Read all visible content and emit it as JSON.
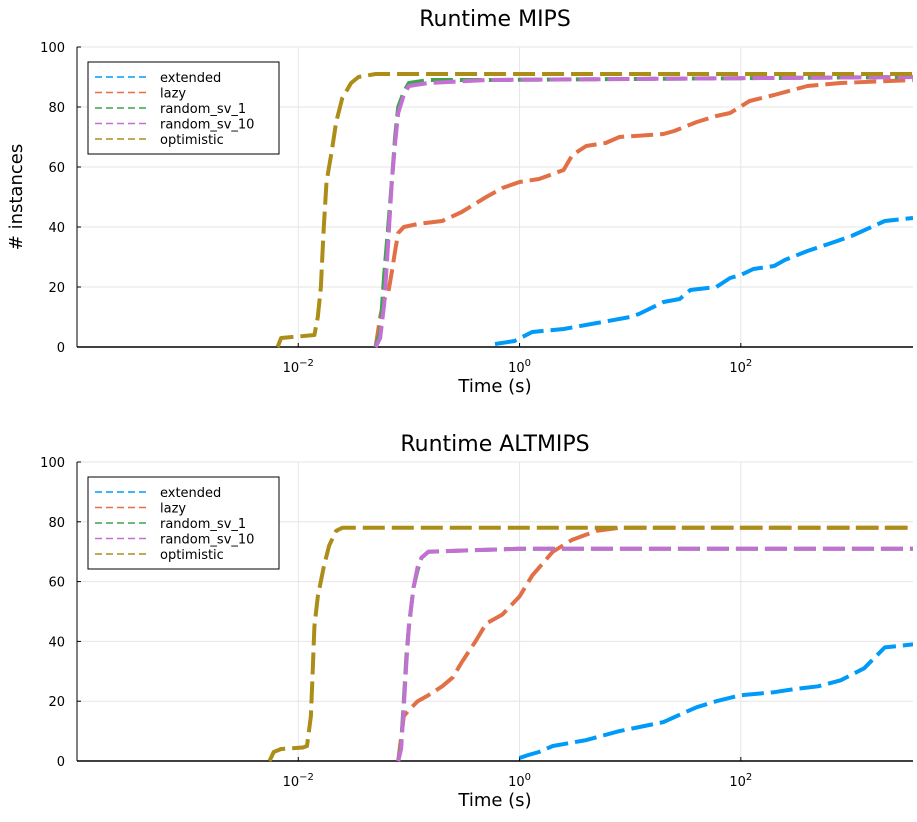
{
  "chart_data": [
    {
      "type": "line",
      "title": "Runtime MIPS",
      "xlabel": "Time (s)",
      "ylabel": "# instances",
      "xscale": "log10",
      "xlim": [
        0.0001,
        3600
      ],
      "ylim": [
        0,
        100
      ],
      "xticks": [
        {
          "value": 0.01,
          "base": "10",
          "exp": "−2"
        },
        {
          "value": 1,
          "base": "10",
          "exp": "0"
        },
        {
          "value": 100,
          "base": "10",
          "exp": "2"
        }
      ],
      "yticks": [
        0,
        20,
        40,
        60,
        80,
        100
      ],
      "grid": true,
      "legend_position": "top-left",
      "series": [
        {
          "name": "extended",
          "color": "#009AF9",
          "x": [
            0.6,
            0.9,
            1.3,
            2.5,
            5,
            10,
            12,
            20,
            28,
            35,
            60,
            80,
            100,
            130,
            200,
            250,
            400,
            700,
            1000,
            2000,
            3600
          ],
          "y": [
            1,
            2,
            5,
            6,
            8,
            10,
            11,
            15,
            16,
            19,
            20,
            23,
            24,
            26,
            27,
            29,
            32,
            35,
            37,
            42,
            43
          ]
        },
        {
          "name": "lazy",
          "color": "#E26F46",
          "x": [
            0.05,
            0.055,
            0.06,
            0.065,
            0.07,
            0.075,
            0.08,
            0.09,
            0.12,
            0.2,
            0.3,
            0.5,
            0.7,
            1.0,
            1.5,
            2.5,
            3,
            4,
            6,
            8,
            20,
            25,
            40,
            60,
            80,
            120,
            200,
            400,
            800,
            3600
          ],
          "y": [
            0,
            10,
            16,
            18,
            25,
            32,
            38,
            40,
            41,
            42,
            45,
            50,
            53,
            55,
            56,
            59,
            64,
            67,
            68,
            70,
            71,
            72,
            75,
            77,
            78,
            82,
            84,
            87,
            88,
            89
          ]
        },
        {
          "name": "random_sv_1",
          "color": "#3DA44D",
          "x": [
            0.05,
            0.055,
            0.06,
            0.065,
            0.07,
            0.075,
            0.08,
            0.09,
            0.1,
            0.15,
            0.5,
            3600
          ],
          "y": [
            0,
            5,
            25,
            40,
            55,
            70,
            80,
            85,
            88,
            89,
            89,
            90
          ]
        },
        {
          "name": "random_sv_10",
          "color": "#C271D2",
          "x": [
            0.05,
            0.055,
            0.06,
            0.065,
            0.07,
            0.075,
            0.08,
            0.09,
            0.1,
            0.15,
            0.5,
            3600
          ],
          "y": [
            0,
            3,
            15,
            35,
            55,
            68,
            78,
            84,
            87,
            88,
            89,
            90
          ]
        },
        {
          "name": "optimistic",
          "color": "#AC8D18",
          "x": [
            0.0065,
            0.007,
            0.01,
            0.014,
            0.015,
            0.016,
            0.0165,
            0.017,
            0.018,
            0.02,
            0.022,
            0.025,
            0.03,
            0.035,
            0.05,
            3600
          ],
          "y": [
            0,
            3,
            3.5,
            4,
            10,
            20,
            30,
            40,
            55,
            65,
            75,
            83,
            88,
            90,
            91,
            91
          ]
        }
      ]
    },
    {
      "type": "line",
      "title": "Runtime ALTMIPS",
      "xlabel": "Time (s)",
      "ylabel": "",
      "xscale": "log10",
      "xlim": [
        0.0001,
        3600
      ],
      "ylim": [
        0,
        100
      ],
      "xticks": [
        {
          "value": 0.01,
          "base": "10",
          "exp": "−2"
        },
        {
          "value": 1,
          "base": "10",
          "exp": "0"
        },
        {
          "value": 100,
          "base": "10",
          "exp": "2"
        }
      ],
      "yticks": [
        0,
        20,
        40,
        60,
        80,
        100
      ],
      "grid": true,
      "legend_position": "top-left",
      "series": [
        {
          "name": "extended",
          "color": "#009AF9",
          "x": [
            1.0,
            1.2,
            1.5,
            2,
            4,
            8,
            20,
            30,
            40,
            60,
            100,
            200,
            300,
            500,
            800,
            1300,
            2000,
            3600
          ],
          "y": [
            1,
            2,
            3,
            5,
            7,
            10,
            13,
            16,
            18,
            20,
            22,
            23,
            24,
            25,
            27,
            31,
            38,
            39
          ]
        },
        {
          "name": "lazy",
          "color": "#E26F46",
          "x": [
            0.08,
            0.09,
            0.1,
            0.12,
            0.15,
            0.2,
            0.25,
            0.3,
            0.4,
            0.5,
            0.7,
            1.0,
            1.3,
            2,
            3,
            5,
            8,
            3600
          ],
          "y": [
            0,
            15,
            17,
            20,
            22,
            25,
            28,
            33,
            40,
            46,
            49,
            55,
            62,
            70,
            74,
            77,
            78,
            78
          ]
        },
        {
          "name": "random_sv_1",
          "color": "#3DA44D",
          "x": [
            0.08,
            0.085,
            0.09,
            0.095,
            0.1,
            0.11,
            0.12,
            0.13,
            0.15,
            1,
            3600
          ],
          "y": [
            0,
            5,
            20,
            35,
            45,
            58,
            64,
            68,
            70,
            71,
            71
          ]
        },
        {
          "name": "random_sv_10",
          "color": "#C271D2",
          "x": [
            0.08,
            0.085,
            0.09,
            0.095,
            0.1,
            0.11,
            0.12,
            0.13,
            0.15,
            1,
            3600
          ],
          "y": [
            0,
            4,
            18,
            33,
            45,
            58,
            65,
            68,
            70,
            71,
            71
          ]
        },
        {
          "name": "optimistic",
          "color": "#AC8D18",
          "x": [
            0.0055,
            0.006,
            0.007,
            0.011,
            0.012,
            0.013,
            0.0135,
            0.014,
            0.015,
            0.017,
            0.019,
            0.022,
            0.025,
            3600
          ],
          "y": [
            0,
            3,
            4,
            4.5,
            5,
            15,
            30,
            45,
            55,
            65,
            72,
            77,
            78,
            78
          ]
        }
      ]
    }
  ]
}
